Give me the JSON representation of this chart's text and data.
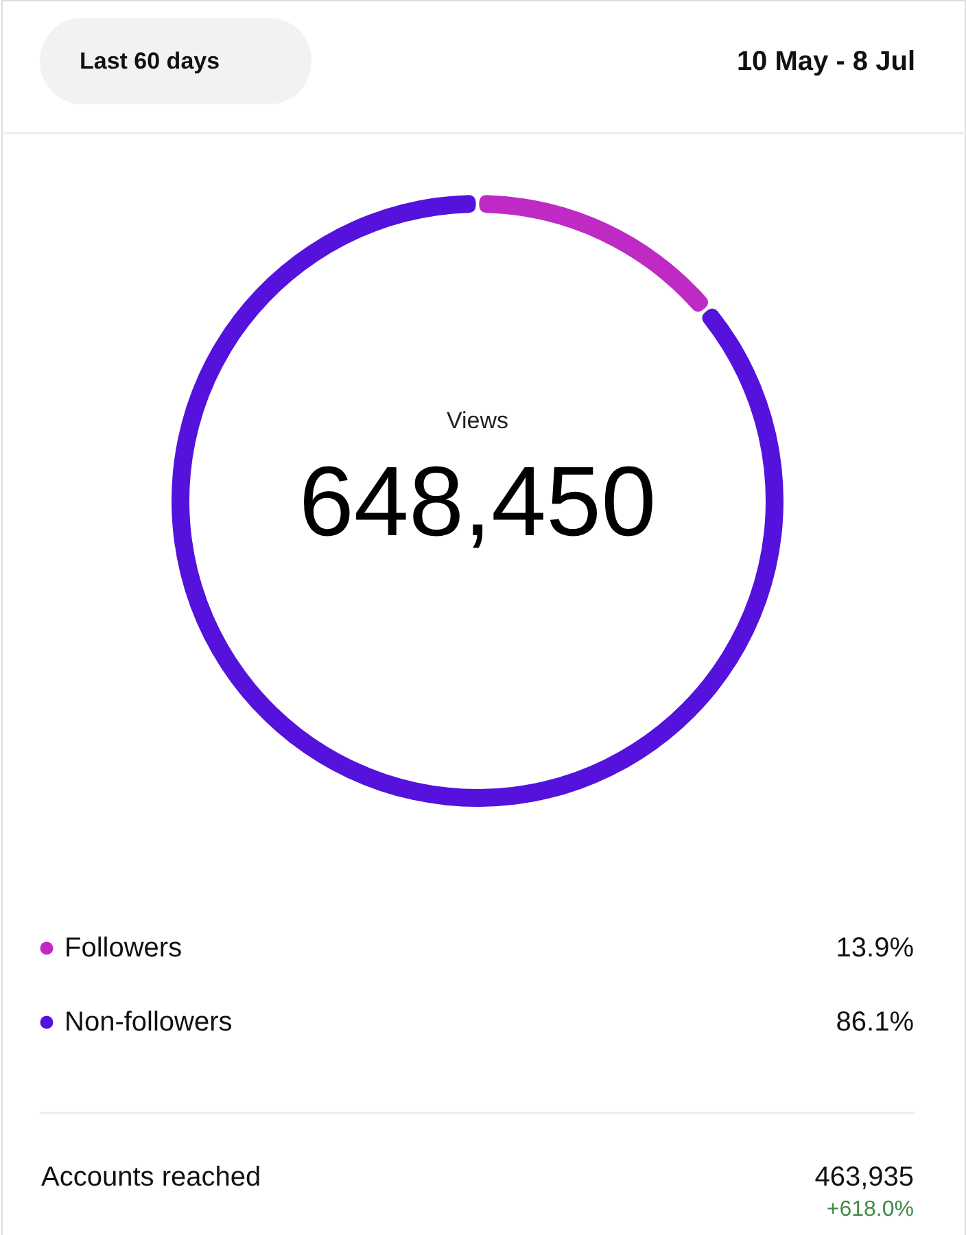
{
  "chart_data": {
    "type": "donut",
    "categories": [
      "Followers",
      "Non-followers"
    ],
    "values": [
      13.9,
      86.1
    ],
    "colors": [
      "#bf2ac4",
      "#5412dc"
    ],
    "value_labels": [
      "13.9%",
      "86.1%"
    ],
    "legend": "bottom",
    "annotations": [
      "Last 60 days",
      "10 May - 8 Jul",
      "Views",
      "648,450",
      "Accounts reached",
      "463,935",
      "+618.0%"
    ]
  }
}
